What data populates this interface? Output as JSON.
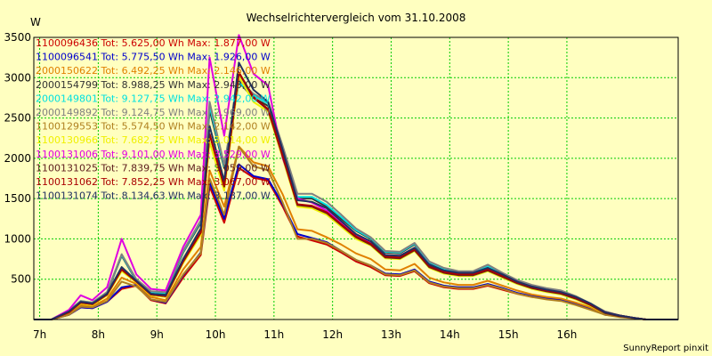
{
  "chart_data": {
    "type": "line",
    "title": "Wechselrichtervergleich vom 31.10.2008",
    "ylabel": "W",
    "footer": "SunnyReport pinxit",
    "ylim": [
      0,
      3500
    ],
    "xlim": [
      6.9,
      17.9
    ],
    "yticks": [
      500,
      1000,
      1500,
      2000,
      2500,
      3000,
      3500
    ],
    "xticks": [
      7,
      8,
      9,
      10,
      11,
      12,
      13,
      14,
      15,
      16
    ],
    "xtick_labels": [
      "7h",
      "8h",
      "9h",
      "10h",
      "11h",
      "12h",
      "13h",
      "14h",
      "15h",
      "16h"
    ],
    "grid": true,
    "x": [
      6.9,
      7.2,
      7.5,
      7.7,
      7.9,
      8.15,
      8.4,
      8.65,
      8.9,
      9.15,
      9.45,
      9.75,
      9.9,
      10.15,
      10.4,
      10.65,
      10.9,
      11.15,
      11.4,
      11.65,
      11.9,
      12.15,
      12.4,
      12.65,
      12.9,
      13.15,
      13.4,
      13.65,
      13.9,
      14.15,
      14.4,
      14.65,
      14.9,
      15.15,
      15.4,
      15.65,
      15.9,
      16.15,
      16.4,
      16.65,
      16.9,
      17.15,
      17.35,
      17.9
    ],
    "series": [
      {
        "name": "1100096436",
        "tot": "5.625,00",
        "max": "1.877,00",
        "color": "#cc0000",
        "values": [
          0,
          0,
          60,
          150,
          140,
          220,
          380,
          420,
          240,
          200,
          520,
          800,
          1650,
          1200,
          1880,
          1760,
          1720,
          1400,
          1030,
          980,
          930,
          830,
          720,
          650,
          550,
          540,
          600,
          450,
          400,
          380,
          380,
          420,
          370,
          320,
          280,
          260,
          240,
          190,
          130,
          60,
          40,
          20,
          0,
          0
        ]
      },
      {
        "name": "1100096541",
        "tot": "5.775,50",
        "max": "1.926,00",
        "color": "#0000cc",
        "values": [
          0,
          0,
          60,
          150,
          140,
          220,
          400,
          430,
          250,
          210,
          550,
          830,
          1700,
          1250,
          1926,
          1780,
          1740,
          1430,
          1060,
          1010,
          960,
          850,
          740,
          670,
          570,
          560,
          620,
          470,
          420,
          400,
          400,
          440,
          390,
          330,
          290,
          270,
          250,
          200,
          140,
          60,
          40,
          20,
          0,
          0
        ]
      },
      {
        "name": "2000150622",
        "tot": "6.492,25",
        "max": "2.146,00",
        "color": "#e08000",
        "values": [
          0,
          0,
          80,
          180,
          160,
          260,
          520,
          440,
          280,
          240,
          620,
          900,
          1850,
          1400,
          2146,
          1950,
          1900,
          1550,
          1120,
          1100,
          1020,
          930,
          820,
          750,
          620,
          610,
          690,
          520,
          460,
          430,
          430,
          480,
          420,
          360,
          310,
          280,
          260,
          210,
          150,
          70,
          40,
          20,
          0,
          0
        ]
      },
      {
        "name": "2000154799",
        "tot": "8.988,25",
        "max": "2.943,00",
        "color": "#333333",
        "values": [
          0,
          0,
          100,
          220,
          200,
          330,
          790,
          480,
          330,
          320,
          830,
          1200,
          2600,
          1880,
          2943,
          2750,
          2650,
          2100,
          1500,
          1500,
          1400,
          1250,
          1100,
          1000,
          830,
          820,
          930,
          700,
          620,
          580,
          580,
          650,
          560,
          470,
          410,
          370,
          340,
          270,
          190,
          90,
          50,
          20,
          0,
          0
        ]
      },
      {
        "name": "2000149801",
        "tot": "9.127,75",
        "max": "2.942,00",
        "color": "#00e0e0",
        "values": [
          0,
          0,
          110,
          230,
          210,
          340,
          800,
          490,
          340,
          330,
          840,
          1220,
          2650,
          1900,
          2942,
          2780,
          2680,
          2130,
          1520,
          1520,
          1420,
          1270,
          1110,
          1010,
          840,
          830,
          940,
          710,
          630,
          590,
          590,
          660,
          570,
          480,
          420,
          380,
          350,
          280,
          200,
          90,
          50,
          20,
          0,
          0
        ]
      },
      {
        "name": "2000149892",
        "tot": "9.124,75",
        "max": "2.969,00",
        "color": "#808080",
        "values": [
          0,
          0,
          110,
          230,
          210,
          340,
          810,
          500,
          350,
          340,
          850,
          1230,
          2700,
          1920,
          2969,
          2800,
          2700,
          2150,
          1560,
          1560,
          1460,
          1300,
          1130,
          1020,
          850,
          840,
          950,
          720,
          640,
          600,
          600,
          680,
          580,
          490,
          430,
          390,
          360,
          290,
          200,
          100,
          50,
          20,
          0,
          0
        ]
      },
      {
        "name": "1100129553",
        "tot": "5.574,50",
        "max": "2.142,00",
        "color": "#b08020",
        "values": [
          0,
          0,
          60,
          160,
          150,
          230,
          470,
          410,
          250,
          220,
          560,
          820,
          1750,
          1300,
          2142,
          1900,
          1850,
          1450,
          1000,
          1000,
          950,
          850,
          740,
          670,
          560,
          550,
          610,
          460,
          410,
          390,
          390,
          430,
          380,
          320,
          280,
          250,
          230,
          180,
          120,
          60,
          30,
          15,
          0,
          0
        ]
      },
      {
        "name": "1100130966",
        "tot": "7.682,75",
        "max": "3.014,00",
        "color": "#f0f000",
        "values": [
          0,
          0,
          90,
          200,
          180,
          300,
          600,
          460,
          300,
          280,
          700,
          1050,
          2200,
          1600,
          3014,
          2700,
          2580,
          2000,
          1400,
          1380,
          1300,
          1150,
          1000,
          920,
          760,
          750,
          850,
          640,
          570,
          540,
          540,
          600,
          520,
          440,
          380,
          340,
          310,
          250,
          170,
          80,
          40,
          20,
          0,
          0
        ]
      },
      {
        "name": "1100131006",
        "tot": "9.101,00",
        "max": "3.529,00",
        "color": "#e000e0",
        "values": [
          0,
          0,
          120,
          300,
          240,
          400,
          1000,
          560,
          380,
          360,
          900,
          1300,
          3250,
          2280,
          3529,
          3050,
          2900,
          2000,
          1500,
          1450,
          1350,
          1200,
          1050,
          960,
          800,
          790,
          890,
          680,
          600,
          560,
          560,
          630,
          540,
          460,
          400,
          360,
          330,
          270,
          190,
          90,
          50,
          20,
          0,
          0
        ]
      },
      {
        "name": "1100131025",
        "tot": "7.839,75",
        "max": "3.059,00",
        "color": "#602020",
        "values": [
          0,
          0,
          90,
          210,
          190,
          310,
          620,
          470,
          310,
          290,
          720,
          1080,
          2300,
          1650,
          3059,
          2750,
          2600,
          2020,
          1420,
          1400,
          1320,
          1170,
          1020,
          930,
          770,
          760,
          860,
          650,
          580,
          550,
          550,
          610,
          530,
          450,
          390,
          350,
          320,
          260,
          180,
          80,
          40,
          20,
          0,
          0
        ]
      },
      {
        "name": "1100131062",
        "tot": "7.852,25",
        "max": "3.067,00",
        "color": "#aa0000",
        "values": [
          0,
          0,
          90,
          210,
          190,
          310,
          620,
          470,
          310,
          290,
          720,
          1080,
          2300,
          1660,
          3067,
          2760,
          2610,
          2030,
          1430,
          1410,
          1330,
          1180,
          1030,
          940,
          780,
          770,
          870,
          660,
          590,
          560,
          560,
          620,
          540,
          460,
          400,
          360,
          330,
          270,
          190,
          90,
          50,
          20,
          0,
          0
        ]
      },
      {
        "name": "1100131074",
        "tot": "8.134,63",
        "max": "3.187,00",
        "color": "#203060",
        "values": [
          0,
          0,
          100,
          220,
          200,
          320,
          650,
          480,
          320,
          300,
          750,
          1130,
          2400,
          1720,
          3187,
          2850,
          2700,
          2100,
          1480,
          1460,
          1380,
          1220,
          1060,
          970,
          800,
          790,
          890,
          680,
          610,
          580,
          580,
          640,
          560,
          470,
          410,
          370,
          340,
          280,
          200,
          90,
          50,
          20,
          0,
          0
        ]
      }
    ]
  },
  "legend": {
    "tot_label": "Tot:",
    "tot_unit": "Wh",
    "max_label": "Max:",
    "max_unit": "W"
  }
}
